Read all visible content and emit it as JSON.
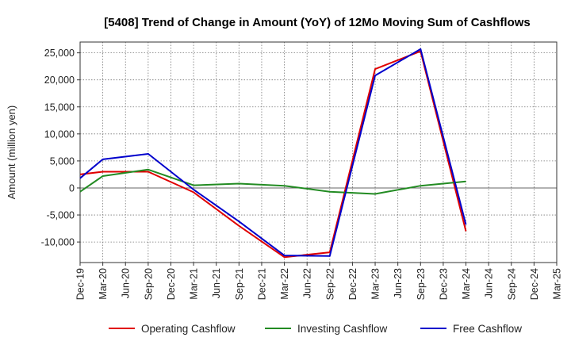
{
  "chart_data": {
    "type": "line",
    "title": "[5408]  Trend of Change in Amount (YoY) of 12Mo Moving Sum of Cashflows",
    "xlabel": "",
    "ylabel": "Amount (million yen)",
    "ylim": [
      -13800,
      27000
    ],
    "yticks": [
      -10000,
      -5000,
      0,
      5000,
      10000,
      15000,
      20000,
      25000
    ],
    "ytick_labels": [
      "-10,000",
      "-5,000",
      "0",
      "5,000",
      "10,000",
      "15,000",
      "20,000",
      "25,000"
    ],
    "categories": [
      "Dec-19",
      "Mar-20",
      "Jun-20",
      "Sep-20",
      "Dec-20",
      "Mar-21",
      "Jun-21",
      "Sep-21",
      "Dec-21",
      "Mar-22",
      "Jun-22",
      "Sep-22",
      "Dec-22",
      "Mar-23",
      "Jun-23",
      "Sep-23",
      "Dec-23",
      "Mar-24",
      "Jun-24",
      "Sep-24",
      "Dec-24",
      "Mar-25"
    ],
    "grid": true,
    "legend_position": "bottom",
    "series": [
      {
        "name": "Operating Cashflow",
        "color": "#e00000",
        "values": [
          2500,
          3000,
          null,
          3000,
          null,
          -800,
          null,
          -7000,
          null,
          -12800,
          null,
          -11900,
          null,
          22000,
          null,
          25300,
          null,
          -8000,
          null,
          null,
          null,
          null
        ]
      },
      {
        "name": "Investing Cashflow",
        "color": "#228b22",
        "values": [
          -700,
          2200,
          null,
          3400,
          null,
          500,
          null,
          800,
          null,
          400,
          null,
          -700,
          null,
          -1100,
          null,
          400,
          null,
          1200,
          null,
          null,
          null,
          null
        ]
      },
      {
        "name": "Free Cashflow",
        "color": "#0000cc",
        "values": [
          1800,
          5300,
          null,
          6300,
          null,
          -300,
          null,
          -6200,
          null,
          -12500,
          null,
          -12600,
          null,
          20800,
          null,
          25700,
          null,
          -6800,
          null,
          null,
          null,
          null
        ]
      }
    ]
  }
}
